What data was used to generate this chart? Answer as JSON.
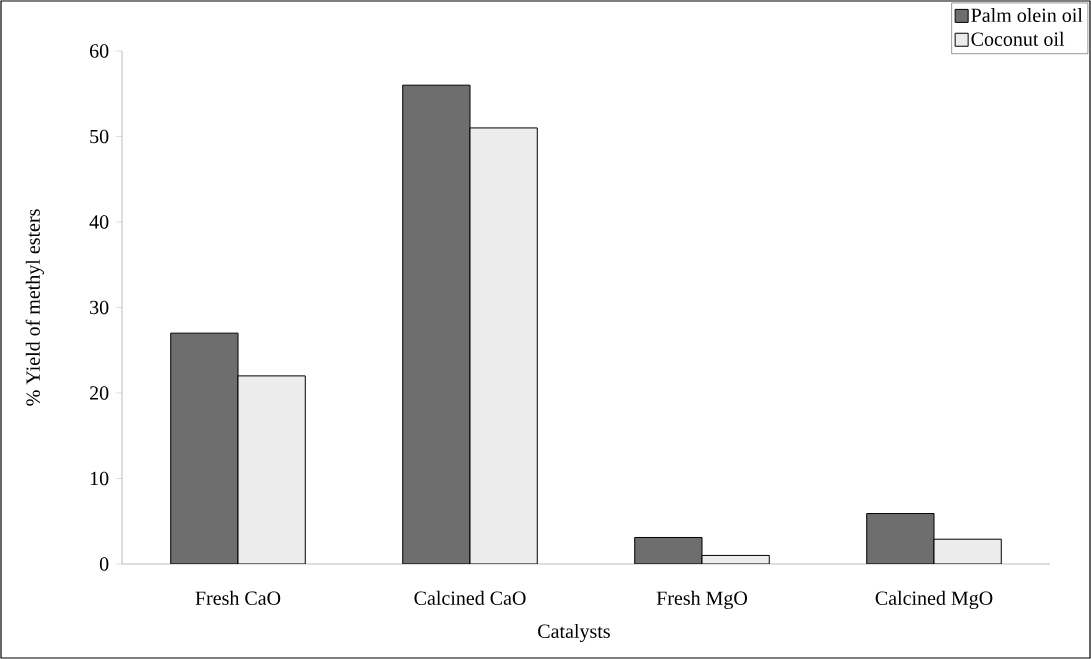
{
  "chart_data": {
    "type": "bar",
    "xlabel": "Catalysts",
    "ylabel": "% Yield of methyl esters",
    "categories": [
      "Fresh CaO",
      "Calcined CaO",
      "Fresh MgO",
      "Calcined MgO"
    ],
    "series": [
      {
        "name": "Palm olein oil",
        "color": "#6e6e6e",
        "values": [
          27,
          56,
          3.1,
          5.9
        ]
      },
      {
        "name": "Coconut oil",
        "color": "#ececec",
        "values": [
          22,
          51,
          1.0,
          2.9
        ]
      }
    ],
    "ylim": [
      0,
      60
    ],
    "yticks": [
      0,
      10,
      20,
      30,
      40,
      50,
      60
    ],
    "legend": "top right"
  }
}
